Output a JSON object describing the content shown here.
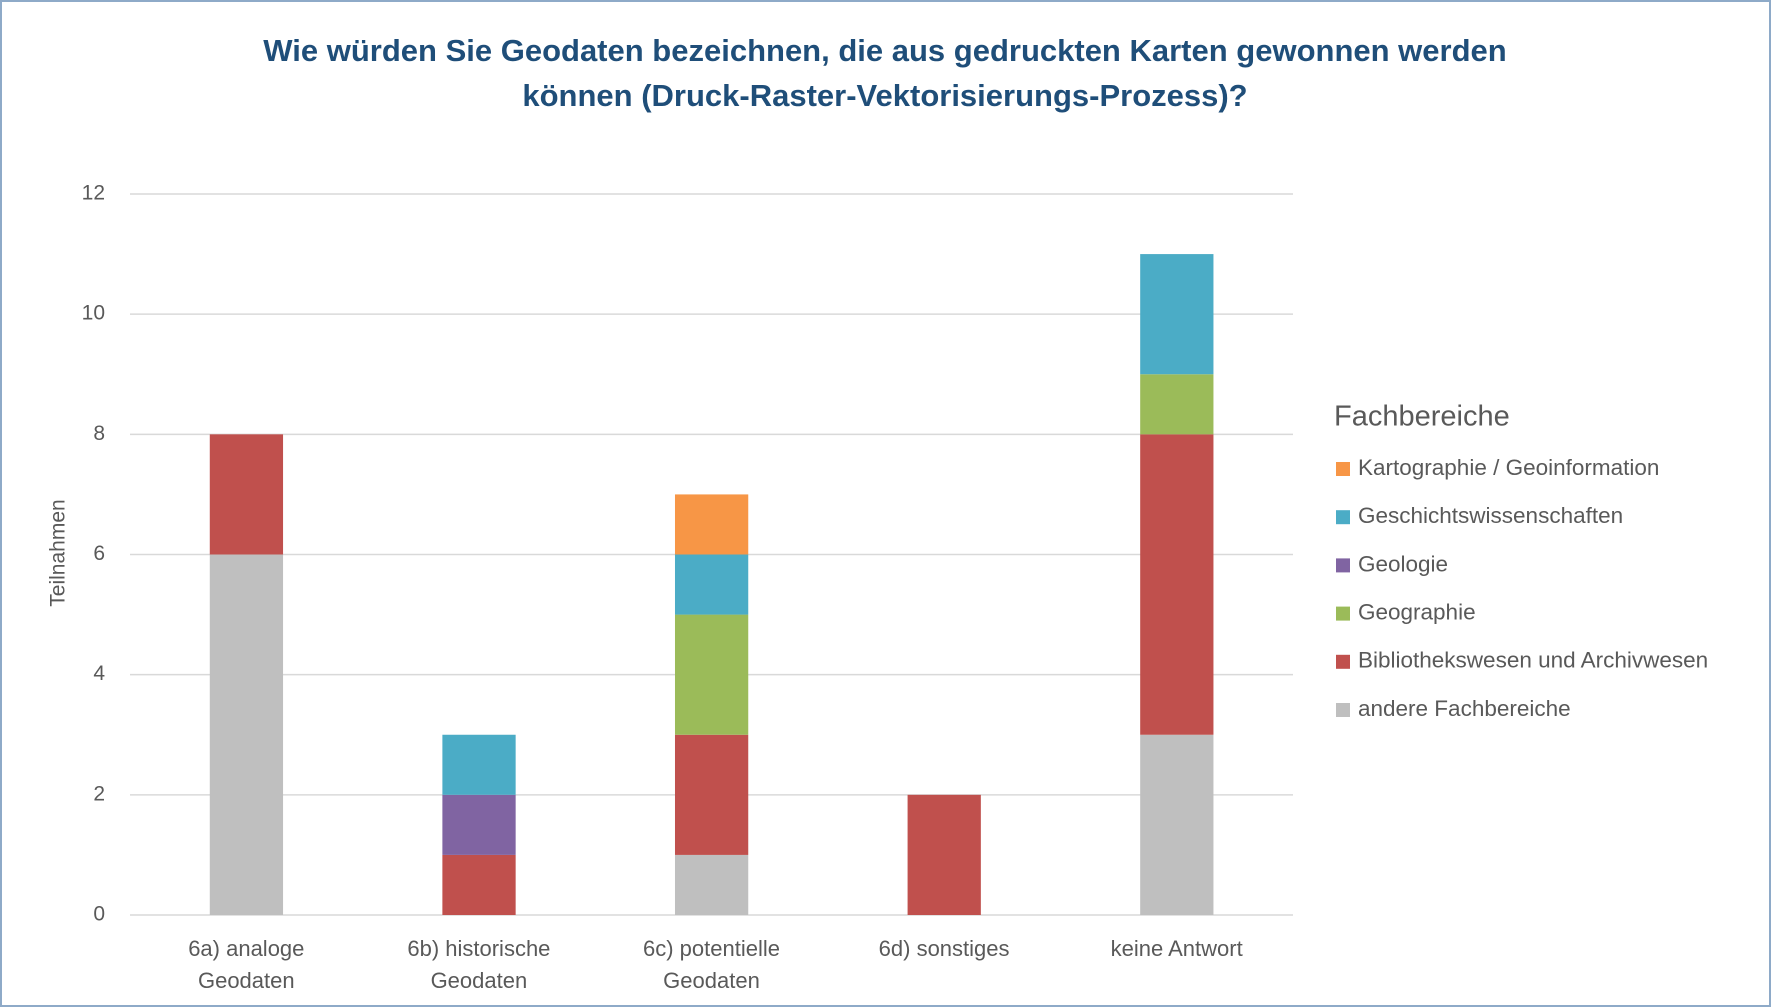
{
  "chart_data": {
    "type": "stacked_bar",
    "title": "Wie würden Sie Geodaten bezeichnen, die aus gedruckten Karten gewonnen werden können (Druck-Raster-Vektorisierungs-Prozess)?",
    "y_label": "Teilnahmen",
    "legend_title": "Fachbereiche",
    "legend_position": "right",
    "categories": [
      "6a) analoge Geodaten",
      "6b) historische Geodaten",
      "6c) potentielle Geodaten",
      "6d) sonstiges",
      "keine Antwort"
    ],
    "series": [
      {
        "name": "andere Fachbereiche",
        "color": "#bfbfbf",
        "values": [
          6,
          0,
          1,
          0,
          3
        ]
      },
      {
        "name": "Bibliothekswesen und Archivwesen",
        "color": "#c0504d",
        "values": [
          2,
          1,
          2,
          2,
          5
        ]
      },
      {
        "name": "Geographie",
        "color": "#9bbb59",
        "values": [
          0,
          0,
          2,
          0,
          1
        ]
      },
      {
        "name": "Geologie",
        "color": "#8064a2",
        "values": [
          0,
          1,
          0,
          0,
          0
        ]
      },
      {
        "name": "Geschichtswissenschaften",
        "color": "#4bacc6",
        "values": [
          0,
          1,
          1,
          0,
          2
        ]
      },
      {
        "name": "Kartographie / Geoinformation",
        "color": "#f79646",
        "values": [
          0,
          0,
          1,
          0,
          0
        ]
      }
    ],
    "ylim": [
      0,
      12
    ],
    "yticks": [
      0,
      2,
      4,
      6,
      8,
      10,
      12
    ],
    "grid": true
  }
}
